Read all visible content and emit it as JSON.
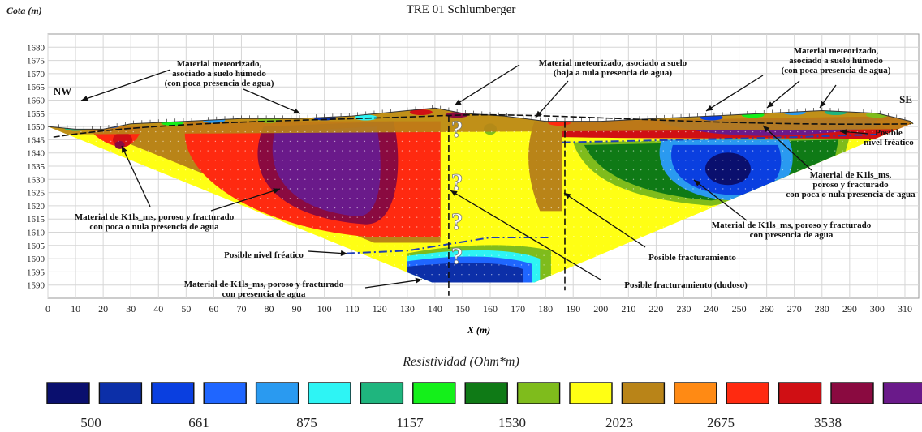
{
  "chart_data": {
    "type": "heatmap",
    "title": "TRE 01 Schlumberger",
    "ylabel": "Cota (m)",
    "xlabel": "X (m)",
    "xlim": [
      0,
      315
    ],
    "ylim": [
      1585,
      1685
    ],
    "x_ticks": [
      0,
      10,
      20,
      30,
      40,
      50,
      60,
      70,
      80,
      90,
      100,
      110,
      120,
      130,
      140,
      150,
      160,
      170,
      180,
      190,
      200,
      210,
      220,
      230,
      240,
      250,
      260,
      270,
      280,
      290,
      300,
      310
    ],
    "y_ticks": [
      1590,
      1595,
      1600,
      1605,
      1610,
      1615,
      1620,
      1625,
      1630,
      1635,
      1640,
      1645,
      1650,
      1655,
      1660,
      1665,
      1670,
      1675,
      1680
    ],
    "grid": true,
    "profile_ends": {
      "left": "NW",
      "right": "SE"
    },
    "legend": {
      "title": "Resistividad (Ohm*m)",
      "colors": [
        "#0a0f6e",
        "#0c2fa8",
        "#0a3fe0",
        "#1f66ff",
        "#2a9af0",
        "#2ef4f4",
        "#1fb57e",
        "#14f01a",
        "#0f7a16",
        "#7fbc1c",
        "#ffff14",
        "#b98418",
        "#ff8a14",
        "#ff2a10",
        "#d00f14",
        "#8a0a40",
        "#6a1a8a"
      ],
      "tick_values": [
        "500",
        "661",
        "875",
        "1157",
        "1530",
        "2023",
        "2675",
        "3538"
      ]
    },
    "annotations": [
      {
        "text": [
          "Material meteorizado,",
          "asociado a suelo húmedo",
          "(con poca presencia de agua)"
        ]
      },
      {
        "text": [
          "Material meteorizado, asociado a suelo",
          "(baja a nula presencia de agua)"
        ]
      },
      {
        "text": [
          "Material meteorizado,",
          "asociado a suelo húmedo",
          "(con poca presencia de agua)"
        ]
      },
      {
        "text": [
          "Posible",
          "nivel fréatico"
        ]
      },
      {
        "text": [
          "Material de K1ls_ms,",
          "poroso y fracturado",
          "con poca o nula presencia de agua"
        ]
      },
      {
        "text": [
          "Material de K1ls_ms, poroso y fracturado",
          "con poca o nula presencia de agua"
        ]
      },
      {
        "text": [
          "Material de K1ls_ms, poroso y fracturado",
          "con presencia de agua"
        ]
      },
      {
        "text": [
          "Posible nivel fréatico"
        ]
      },
      {
        "text": [
          "Posible fracturamiento"
        ]
      },
      {
        "text": [
          "Material de K1ls_ms, poroso y fracturado",
          "con presencia de agua"
        ]
      },
      {
        "text": [
          "Posible fracturamiento (dudoso)"
        ]
      }
    ]
  }
}
